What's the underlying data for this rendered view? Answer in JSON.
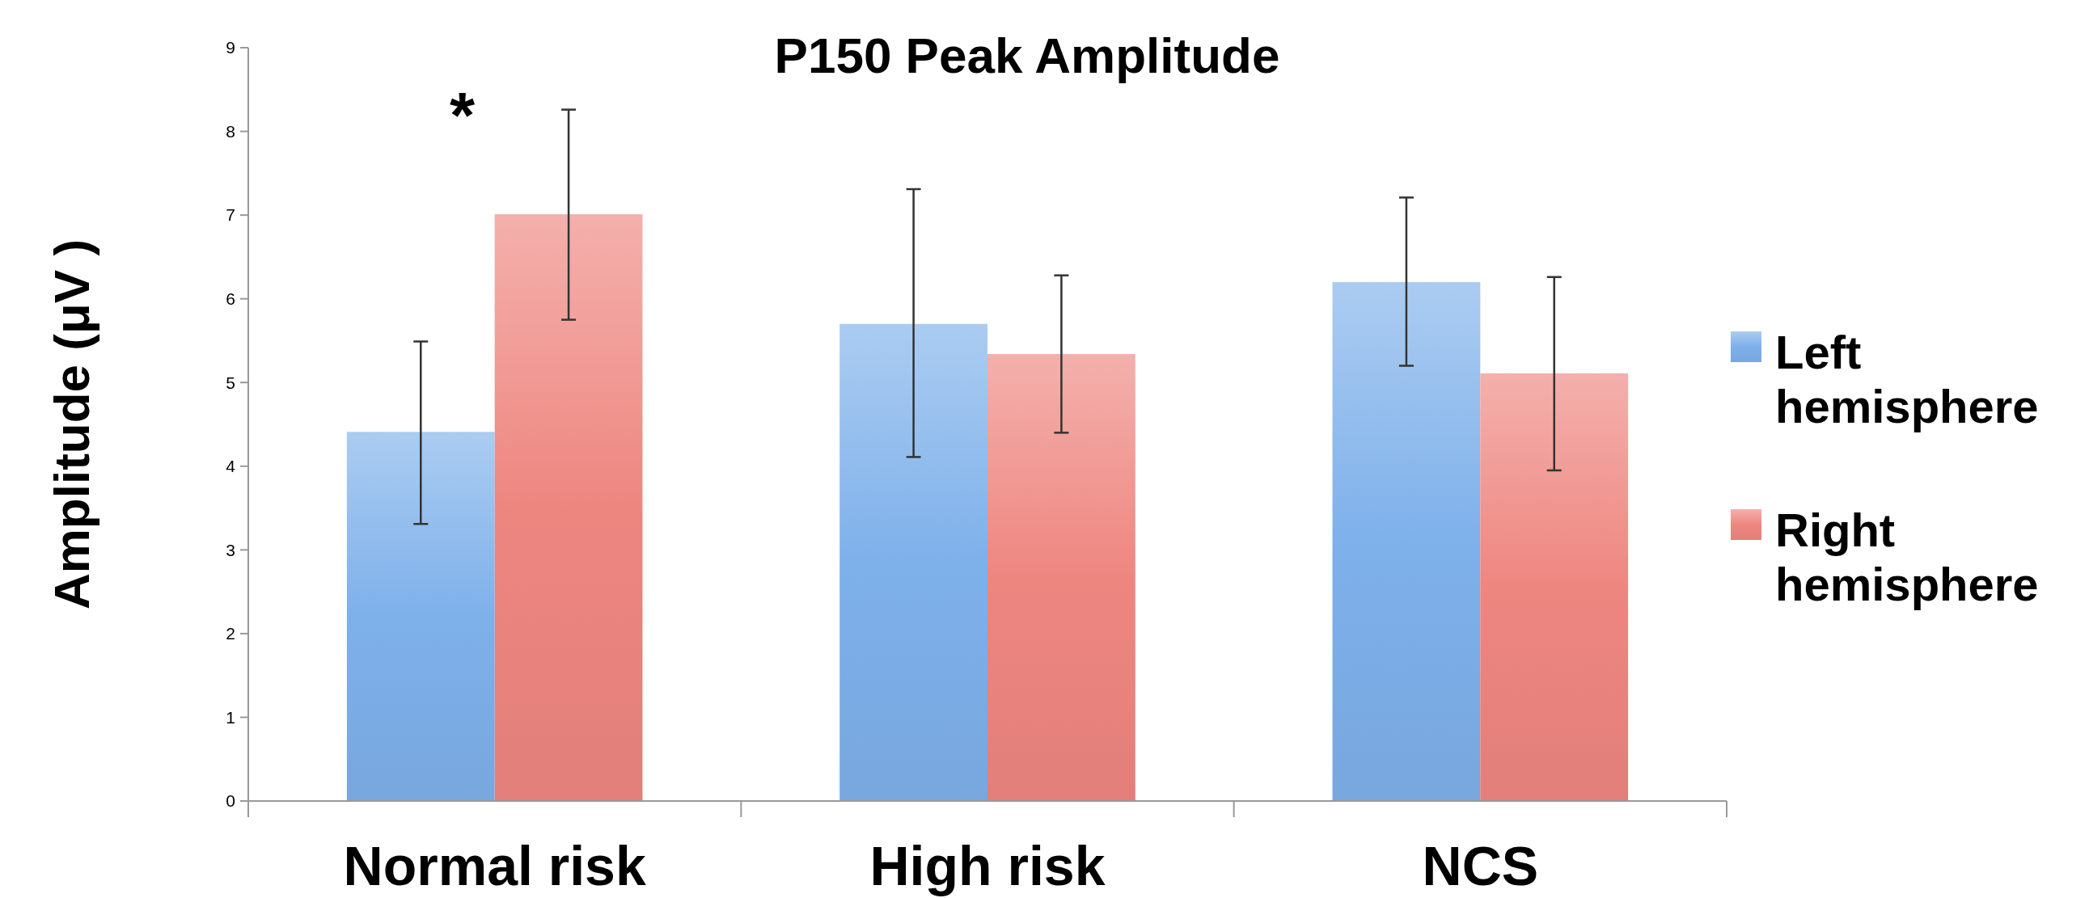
{
  "chart_data": {
    "type": "bar",
    "title": "P150 Peak Amplitude",
    "ylabel": "Amplitude (μV )",
    "categories": [
      "Normal risk",
      "High risk",
      "NCS"
    ],
    "series": [
      {
        "name": "Left hemisphere",
        "color": "#7eb0ea",
        "values": [
          4.41,
          5.7,
          6.2
        ],
        "errors": [
          [
            3.31,
            5.49
          ],
          [
            4.11,
            7.31
          ],
          [
            5.2,
            7.21
          ]
        ]
      },
      {
        "name": "Right hemisphere",
        "color": "#ee8680",
        "values": [
          7.01,
          5.34,
          5.11
        ],
        "errors": [
          [
            5.75,
            8.26
          ],
          [
            4.4,
            6.28
          ],
          [
            3.95,
            6.26
          ]
        ]
      }
    ],
    "ylim": [
      0,
      9
    ],
    "yticks": [
      0,
      1,
      2,
      3,
      4,
      5,
      6,
      7,
      8,
      9
    ],
    "grid": false,
    "legend": "right",
    "annotations": [
      "*"
    ]
  }
}
